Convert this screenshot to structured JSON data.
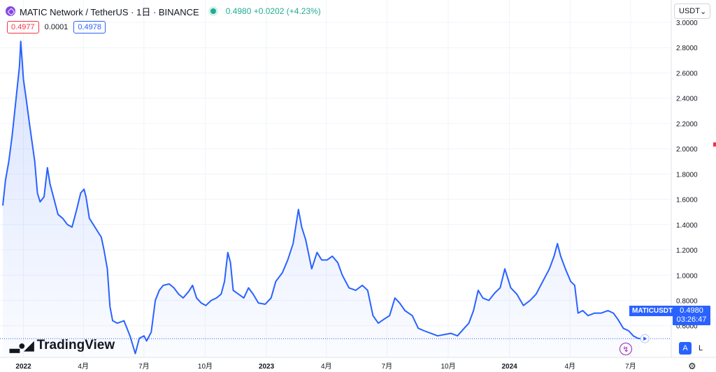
{
  "header": {
    "title": "MATIC Network / TetherUS · 1日 · BINANCE",
    "price": "0.4980 +0.0202 (+4.23%)"
  },
  "bidask": {
    "sell": "0.4977",
    "spread": "0.0001",
    "buy": "0.4978"
  },
  "currency": {
    "label": "USDT"
  },
  "brand": {
    "name": "TradingView"
  },
  "last_price": {
    "symbol": "MATICUSDT",
    "price": "0.4980",
    "countdown": "03:26:47"
  },
  "scale_buttons": {
    "auto": "A",
    "log": "L"
  },
  "colors": {
    "line": "#2962ff",
    "accent": "#2962ff",
    "up": "#22ab94",
    "down": "#f23645"
  },
  "chart_data": {
    "type": "area",
    "title": "MATIC Network / TetherUS · 1日 · BINANCE",
    "xlabel": "",
    "ylabel": "",
    "ylim": [
      0.35,
      3.0
    ],
    "x_start": "2021-12-01",
    "x_end": "2024-08-31",
    "y_ticks": [
      "0.6000",
      "0.8000",
      "1.0000",
      "1.2000",
      "1.4000",
      "1.6000",
      "1.8000",
      "2.0000",
      "2.2000",
      "2.4000",
      "2.6000",
      "2.8000",
      "3.0000"
    ],
    "x_ticks": [
      {
        "label": "2022",
        "date": "2022-01-01"
      },
      {
        "label": "4月",
        "date": "2022-04-01"
      },
      {
        "label": "7月",
        "date": "2022-07-01"
      },
      {
        "label": "10月",
        "date": "2022-10-01"
      },
      {
        "label": "2023",
        "date": "2023-01-01"
      },
      {
        "label": "4月",
        "date": "2023-04-01"
      },
      {
        "label": "7月",
        "date": "2023-07-01"
      },
      {
        "label": "10月",
        "date": "2023-10-01"
      },
      {
        "label": "2024",
        "date": "2024-01-01"
      },
      {
        "label": "4月",
        "date": "2024-04-01"
      },
      {
        "label": "7月",
        "date": "2024-07-01"
      }
    ],
    "series": [
      {
        "name": "MATICUSDT",
        "points": [
          [
            "2021-12-01",
            1.55
          ],
          [
            "2021-12-05",
            1.75
          ],
          [
            "2021-12-10",
            1.9
          ],
          [
            "2021-12-15",
            2.1
          ],
          [
            "2021-12-18",
            2.25
          ],
          [
            "2021-12-22",
            2.45
          ],
          [
            "2021-12-26",
            2.65
          ],
          [
            "2021-12-28",
            2.85
          ],
          [
            "2022-01-01",
            2.55
          ],
          [
            "2022-01-05",
            2.4
          ],
          [
            "2022-01-10",
            2.2
          ],
          [
            "2022-01-14",
            2.05
          ],
          [
            "2022-01-18",
            1.9
          ],
          [
            "2022-01-22",
            1.65
          ],
          [
            "2022-01-26",
            1.58
          ],
          [
            "2022-02-01",
            1.62
          ],
          [
            "2022-02-06",
            1.85
          ],
          [
            "2022-02-10",
            1.72
          ],
          [
            "2022-02-15",
            1.62
          ],
          [
            "2022-02-22",
            1.48
          ],
          [
            "2022-03-01",
            1.45
          ],
          [
            "2022-03-08",
            1.4
          ],
          [
            "2022-03-15",
            1.38
          ],
          [
            "2022-03-22",
            1.52
          ],
          [
            "2022-03-28",
            1.65
          ],
          [
            "2022-04-02",
            1.68
          ],
          [
            "2022-04-05",
            1.62
          ],
          [
            "2022-04-10",
            1.45
          ],
          [
            "2022-04-16",
            1.4
          ],
          [
            "2022-04-22",
            1.35
          ],
          [
            "2022-04-28",
            1.3
          ],
          [
            "2022-05-02",
            1.2
          ],
          [
            "2022-05-07",
            1.05
          ],
          [
            "2022-05-11",
            0.75
          ],
          [
            "2022-05-15",
            0.64
          ],
          [
            "2022-05-22",
            0.62
          ],
          [
            "2022-06-01",
            0.64
          ],
          [
            "2022-06-10",
            0.52
          ],
          [
            "2022-06-14",
            0.45
          ],
          [
            "2022-06-18",
            0.38
          ],
          [
            "2022-06-24",
            0.5
          ],
          [
            "2022-07-01",
            0.52
          ],
          [
            "2022-07-05",
            0.48
          ],
          [
            "2022-07-12",
            0.55
          ],
          [
            "2022-07-18",
            0.8
          ],
          [
            "2022-07-24",
            0.88
          ],
          [
            "2022-07-30",
            0.92
          ],
          [
            "2022-08-08",
            0.93
          ],
          [
            "2022-08-15",
            0.9
          ],
          [
            "2022-08-22",
            0.85
          ],
          [
            "2022-08-29",
            0.82
          ],
          [
            "2022-09-06",
            0.87
          ],
          [
            "2022-09-12",
            0.92
          ],
          [
            "2022-09-18",
            0.82
          ],
          [
            "2022-09-25",
            0.78
          ],
          [
            "2022-10-02",
            0.76
          ],
          [
            "2022-10-10",
            0.8
          ],
          [
            "2022-10-18",
            0.82
          ],
          [
            "2022-10-25",
            0.85
          ],
          [
            "2022-10-30",
            0.95
          ],
          [
            "2022-11-04",
            1.18
          ],
          [
            "2022-11-08",
            1.1
          ],
          [
            "2022-11-12",
            0.88
          ],
          [
            "2022-11-20",
            0.85
          ],
          [
            "2022-11-28",
            0.82
          ],
          [
            "2022-12-05",
            0.9
          ],
          [
            "2022-12-12",
            0.85
          ],
          [
            "2022-12-20",
            0.78
          ],
          [
            "2022-12-30",
            0.77
          ],
          [
            "2023-01-08",
            0.82
          ],
          [
            "2023-01-15",
            0.95
          ],
          [
            "2023-01-25",
            1.02
          ],
          [
            "2023-02-02",
            1.12
          ],
          [
            "2023-02-10",
            1.25
          ],
          [
            "2023-02-18",
            1.52
          ],
          [
            "2023-02-23",
            1.38
          ],
          [
            "2023-03-01",
            1.28
          ],
          [
            "2023-03-10",
            1.05
          ],
          [
            "2023-03-18",
            1.18
          ],
          [
            "2023-03-25",
            1.12
          ],
          [
            "2023-04-02",
            1.12
          ],
          [
            "2023-04-10",
            1.15
          ],
          [
            "2023-04-18",
            1.1
          ],
          [
            "2023-04-25",
            1.0
          ],
          [
            "2023-05-05",
            0.9
          ],
          [
            "2023-05-15",
            0.88
          ],
          [
            "2023-05-25",
            0.92
          ],
          [
            "2023-06-02",
            0.88
          ],
          [
            "2023-06-10",
            0.68
          ],
          [
            "2023-06-18",
            0.62
          ],
          [
            "2023-06-26",
            0.65
          ],
          [
            "2023-07-05",
            0.68
          ],
          [
            "2023-07-13",
            0.82
          ],
          [
            "2023-07-20",
            0.78
          ],
          [
            "2023-07-28",
            0.72
          ],
          [
            "2023-08-08",
            0.68
          ],
          [
            "2023-08-17",
            0.58
          ],
          [
            "2023-08-26",
            0.56
          ],
          [
            "2023-09-05",
            0.54
          ],
          [
            "2023-09-15",
            0.52
          ],
          [
            "2023-09-25",
            0.53
          ],
          [
            "2023-10-05",
            0.54
          ],
          [
            "2023-10-15",
            0.52
          ],
          [
            "2023-10-25",
            0.58
          ],
          [
            "2023-11-01",
            0.62
          ],
          [
            "2023-11-08",
            0.72
          ],
          [
            "2023-11-15",
            0.88
          ],
          [
            "2023-11-22",
            0.82
          ],
          [
            "2023-12-01",
            0.8
          ],
          [
            "2023-12-10",
            0.86
          ],
          [
            "2023-12-18",
            0.9
          ],
          [
            "2023-12-25",
            1.05
          ],
          [
            "2024-01-03",
            0.9
          ],
          [
            "2024-01-12",
            0.85
          ],
          [
            "2024-01-22",
            0.76
          ],
          [
            "2024-02-01",
            0.8
          ],
          [
            "2024-02-10",
            0.85
          ],
          [
            "2024-02-20",
            0.95
          ],
          [
            "2024-03-01",
            1.05
          ],
          [
            "2024-03-08",
            1.15
          ],
          [
            "2024-03-13",
            1.25
          ],
          [
            "2024-03-18",
            1.15
          ],
          [
            "2024-03-25",
            1.05
          ],
          [
            "2024-04-02",
            0.95
          ],
          [
            "2024-04-08",
            0.92
          ],
          [
            "2024-04-13",
            0.7
          ],
          [
            "2024-04-20",
            0.72
          ],
          [
            "2024-04-28",
            0.68
          ],
          [
            "2024-05-08",
            0.7
          ],
          [
            "2024-05-18",
            0.7
          ],
          [
            "2024-05-28",
            0.72
          ],
          [
            "2024-06-05",
            0.7
          ],
          [
            "2024-06-12",
            0.65
          ],
          [
            "2024-06-20",
            0.58
          ],
          [
            "2024-06-28",
            0.56
          ],
          [
            "2024-07-05",
            0.52
          ],
          [
            "2024-07-12",
            0.5
          ],
          [
            "2024-07-16",
            0.498
          ]
        ]
      }
    ],
    "last_value": 0.498,
    "grid": true,
    "legend": "none"
  }
}
